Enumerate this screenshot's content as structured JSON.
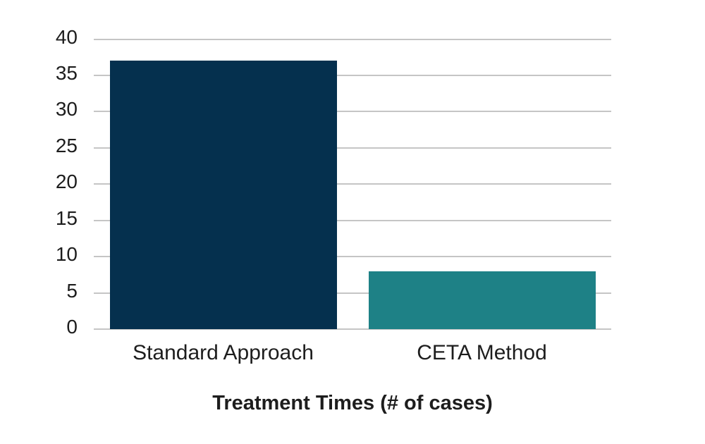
{
  "chart_data": {
    "type": "bar",
    "title": "Treatment Times (# of cases)",
    "categories": [
      "Standard Approach",
      "CETA Method"
    ],
    "values": [
      37,
      8
    ],
    "xlabel": "",
    "ylabel": "",
    "ylim": [
      0,
      40
    ],
    "yticks": [
      0,
      5,
      10,
      15,
      20,
      25,
      30,
      35,
      40
    ],
    "grid": true,
    "legend": false,
    "bar_colors": [
      "#05304E",
      "#1E8186"
    ],
    "grid_color": "#C5C5C5",
    "text_color": "#1D1D1D",
    "background": "#FFFFFF"
  }
}
